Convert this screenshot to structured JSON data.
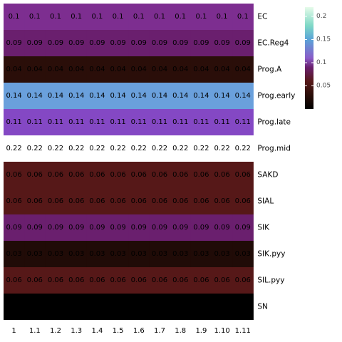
{
  "chart_data": {
    "type": "heatmap",
    "columns": [
      "1",
      "1.1",
      "1.2",
      "1.3",
      "1.4",
      "1.5",
      "1.6",
      "1.7",
      "1.8",
      "1.9",
      "1.10",
      "1.11"
    ],
    "rows": [
      {
        "name": "EC",
        "value": 0.1,
        "label": "0.1"
      },
      {
        "name": "EC.Reg4",
        "value": 0.09,
        "label": "0.09"
      },
      {
        "name": "Prog.A",
        "value": 0.04,
        "label": "0.04"
      },
      {
        "name": "Prog.early",
        "value": 0.14,
        "label": "0.14"
      },
      {
        "name": "Prog.late",
        "value": 0.11,
        "label": "0.11"
      },
      {
        "name": "Prog.mid",
        "value": 0.22,
        "label": "0.22"
      },
      {
        "name": "SAKD",
        "value": 0.06,
        "label": "0.06"
      },
      {
        "name": "SIAL",
        "value": 0.06,
        "label": "0.06"
      },
      {
        "name": "SIK",
        "value": 0.09,
        "label": "0.09"
      },
      {
        "name": "SIK.pyy",
        "value": 0.03,
        "label": "0.03"
      },
      {
        "name": "SIL.pyy",
        "value": 0.06,
        "label": "0.06"
      },
      {
        "name": "SN",
        "value": 0.0,
        "label": ""
      }
    ],
    "color_scale": {
      "domain": [
        0.0,
        0.04,
        0.06,
        0.09,
        0.1,
        0.11,
        0.14,
        0.22
      ],
      "colors": [
        "#000000",
        "#2a0e09",
        "#561818",
        "#6a1f6e",
        "#7d2e90",
        "#8448c4",
        "#6aa0dc",
        "#ffffff"
      ]
    },
    "legend": {
      "range": [
        0.0,
        0.22
      ],
      "ticks": [
        0.05,
        0.1,
        0.15,
        0.2
      ],
      "tick_labels": [
        "0.05",
        "0.1",
        "0.15",
        "0.2"
      ],
      "placement": "right"
    }
  }
}
